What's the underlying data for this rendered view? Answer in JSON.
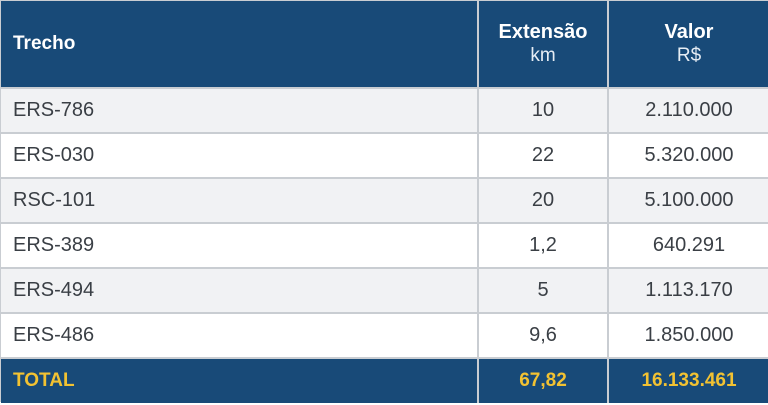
{
  "table": {
    "headers": {
      "trecho": "Trecho",
      "extensao": "Extensão",
      "extensao_unit": "km",
      "valor": "Valor",
      "valor_unit": "R$"
    },
    "rows": [
      {
        "trecho": "ERS-786",
        "extensao": "10",
        "valor": "2.110.000"
      },
      {
        "trecho": "ERS-030",
        "extensao": "22",
        "valor": "5.320.000"
      },
      {
        "trecho": "RSC-101",
        "extensao": "20",
        "valor": "5.100.000"
      },
      {
        "trecho": "ERS-389",
        "extensao": "1,2",
        "valor": "640.291"
      },
      {
        "trecho": "ERS-494",
        "extensao": "5",
        "valor": "1.113.170"
      },
      {
        "trecho": "ERS-486",
        "extensao": "9,6",
        "valor": "1.850.000"
      }
    ],
    "total": {
      "label": "TOTAL",
      "extensao": "67,82",
      "valor": "16.133.461"
    }
  },
  "colors": {
    "header_bg": "#184a78",
    "total_text": "#f2c232",
    "row_shade": "#f1f2f4"
  }
}
